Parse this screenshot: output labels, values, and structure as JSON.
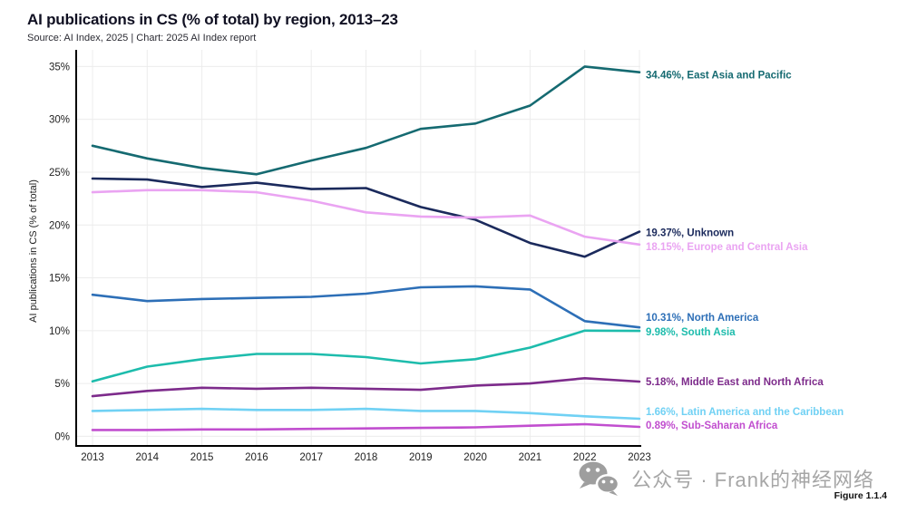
{
  "chart": {
    "title": "AI publications in CS (% of total) by region, 2013–23",
    "source": "Source: AI Index, 2025 | Chart: 2025 AI Index report",
    "y_axis_title": "AI publications in CS (% of total)",
    "figure_label": "Figure 1.1.4"
  },
  "watermark": {
    "text": "公众号 · Frank的神经网络"
  },
  "colors": {
    "axis": "#000000",
    "grid": "#ececec",
    "tick_text": "#222222"
  },
  "chart_data": {
    "type": "line",
    "title": "AI publications in CS (% of total) by region, 2013–23",
    "xlabel": "",
    "ylabel": "AI publications in CS (% of total)",
    "x": [
      2013,
      2014,
      2015,
      2016,
      2017,
      2018,
      2019,
      2020,
      2021,
      2022,
      2023
    ],
    "ylim": [
      0,
      35
    ],
    "y_tick_step": 5,
    "y_tick_suffix": "%",
    "grid": true,
    "legend_position": "right-end-labels",
    "series": [
      {
        "name": "East Asia and Pacific",
        "color": "#156a71",
        "end_label": "34.46%",
        "values": [
          27.5,
          26.3,
          25.4,
          24.8,
          26.1,
          27.3,
          29.1,
          29.6,
          31.3,
          35.0,
          34.46
        ]
      },
      {
        "name": "Unknown",
        "color": "#1b2a5c",
        "end_label": "19.37%",
        "values": [
          24.4,
          24.3,
          23.6,
          24.0,
          23.4,
          23.5,
          21.7,
          20.5,
          18.3,
          17.0,
          19.37
        ]
      },
      {
        "name": "Europe and Central Asia",
        "color": "#eaa4f2",
        "end_label": "18.15%",
        "values": [
          23.1,
          23.3,
          23.3,
          23.1,
          22.3,
          21.2,
          20.8,
          20.7,
          20.9,
          18.9,
          18.15
        ]
      },
      {
        "name": "North America",
        "color": "#2d6fb7",
        "end_label": "10.31%",
        "values": [
          13.4,
          12.8,
          13.0,
          13.1,
          13.2,
          13.5,
          14.1,
          14.2,
          13.9,
          10.9,
          10.31
        ]
      },
      {
        "name": "South Asia",
        "color": "#1dbcac",
        "end_label": "9.98%",
        "values": [
          5.2,
          6.6,
          7.3,
          7.8,
          7.8,
          7.5,
          6.9,
          7.3,
          8.4,
          10.0,
          9.98
        ]
      },
      {
        "name": "Middle East and North Africa",
        "color": "#7d2b8b",
        "end_label": "5.18%",
        "values": [
          3.8,
          4.3,
          4.6,
          4.5,
          4.6,
          4.5,
          4.4,
          4.8,
          5.0,
          5.5,
          5.18
        ]
      },
      {
        "name": "Latin America and the Caribbean",
        "color": "#70d1f4",
        "end_label": "1.66%",
        "values": [
          2.4,
          2.5,
          2.6,
          2.5,
          2.5,
          2.6,
          2.4,
          2.4,
          2.2,
          1.9,
          1.66
        ]
      },
      {
        "name": "Sub-Saharan Africa",
        "color": "#c14ecf",
        "end_label": "0.89%",
        "values": [
          0.6,
          0.6,
          0.65,
          0.65,
          0.7,
          0.75,
          0.8,
          0.85,
          1.0,
          1.15,
          0.89
        ]
      }
    ]
  }
}
